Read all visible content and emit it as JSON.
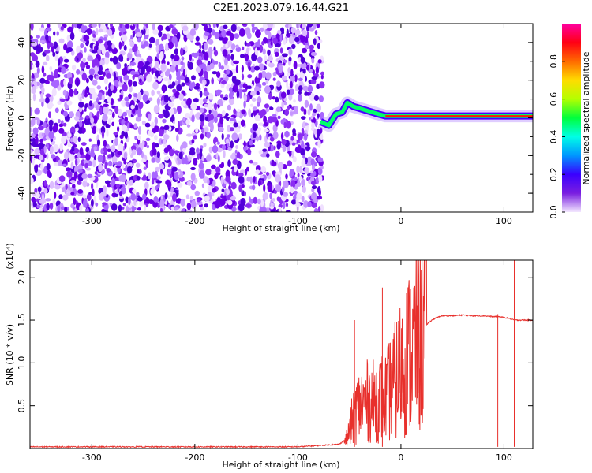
{
  "title": "C2E1.2023.079.16.44.G21",
  "chart_data": [
    {
      "type": "heatmap",
      "xlabel": "Height of straight line (km)",
      "ylabel": "Frequency (Hz)",
      "xlim": [
        -360,
        128
      ],
      "ylim": [
        -50,
        50
      ],
      "xticks": [
        -300,
        -200,
        -100,
        0,
        100
      ],
      "yticks": [
        -40,
        -20,
        0,
        20,
        40
      ],
      "noise_region_x": [
        -360,
        -76
      ],
      "signal_track": [
        {
          "x": -78,
          "y": -2
        },
        {
          "x": -70,
          "y": -4
        },
        {
          "x": -63,
          "y": 2
        },
        {
          "x": -57,
          "y": 3
        },
        {
          "x": -52,
          "y": 8
        },
        {
          "x": -46,
          "y": 6
        },
        {
          "x": -40,
          "y": 5
        },
        {
          "x": -34,
          "y": 4
        },
        {
          "x": -28,
          "y": 3
        },
        {
          "x": -22,
          "y": 2
        },
        {
          "x": -15,
          "y": 1
        },
        {
          "x": -8,
          "y": 1
        },
        {
          "x": 0,
          "y": 1
        },
        {
          "x": 20,
          "y": 1
        },
        {
          "x": 50,
          "y": 1
        },
        {
          "x": 80,
          "y": 1
        },
        {
          "x": 110,
          "y": 1
        },
        {
          "x": 128,
          "y": 1
        }
      ],
      "colorbar": {
        "label": "Normalized spectral amplitude",
        "range": [
          0,
          1
        ],
        "ticks": [
          "0.0",
          "0.2",
          "0.4",
          "0.6",
          "0.8"
        ],
        "stops": [
          "#f2e6ff",
          "#7a1ee0",
          "#3a00ff",
          "#0096ff",
          "#00ffe6",
          "#00ff3c",
          "#b4ff00",
          "#ffdc00",
          "#ff6a00",
          "#ff0014",
          "#ff00a0"
        ]
      }
    },
    {
      "type": "line",
      "xlabel": "Height of straight line (km)",
      "ylabel": "SNR (10 * v/v)",
      "yunit": "(x10⁴)",
      "xlim": [
        -360,
        128
      ],
      "ylim": [
        0,
        2.2
      ],
      "xticks": [
        -300,
        -200,
        -100,
        0,
        100
      ],
      "yticks": [
        "0.5",
        "1.0",
        "1.5",
        "2.0"
      ],
      "color": "#e8302c",
      "series": [
        {
          "x": [
            -360,
            -300,
            -200,
            -100,
            -60,
            -52,
            -48,
            -45,
            -40,
            -35,
            -30,
            -25,
            -20,
            -15,
            -10,
            -5,
            0,
            5,
            10,
            15,
            20,
            25,
            30,
            35,
            40,
            50,
            60,
            70,
            80,
            90,
            95,
            100,
            105,
            110,
            115,
            120,
            128
          ],
          "values": [
            0.02,
            0.02,
            0.02,
            0.02,
            0.05,
            0.12,
            0.3,
            0.45,
            0.5,
            0.55,
            0.55,
            0.55,
            0.6,
            0.6,
            0.7,
            0.8,
            0.95,
            1.05,
            1.15,
            1.25,
            1.35,
            1.45,
            1.5,
            1.53,
            1.55,
            1.55,
            1.56,
            1.55,
            1.55,
            1.54,
            1.54,
            1.53,
            1.52,
            1.5,
            1.5,
            1.5,
            1.5
          ]
        }
      ]
    }
  ]
}
